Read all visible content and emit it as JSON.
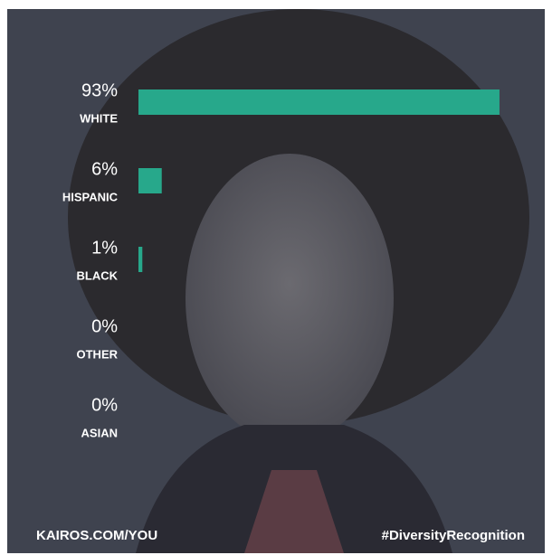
{
  "chart_data": {
    "type": "bar",
    "orientation": "horizontal",
    "categories": [
      "WHITE",
      "HISPANIC",
      "BLACK",
      "OTHER",
      "ASIAN"
    ],
    "values": [
      93,
      6,
      1,
      0,
      0
    ],
    "value_labels": [
      "93%",
      "6%",
      "1%",
      "0%",
      "0%"
    ],
    "color": "#27a88b",
    "footer_left": "KAIROS.COM/YOU",
    "footer_right": "#DiversityRecognition"
  }
}
